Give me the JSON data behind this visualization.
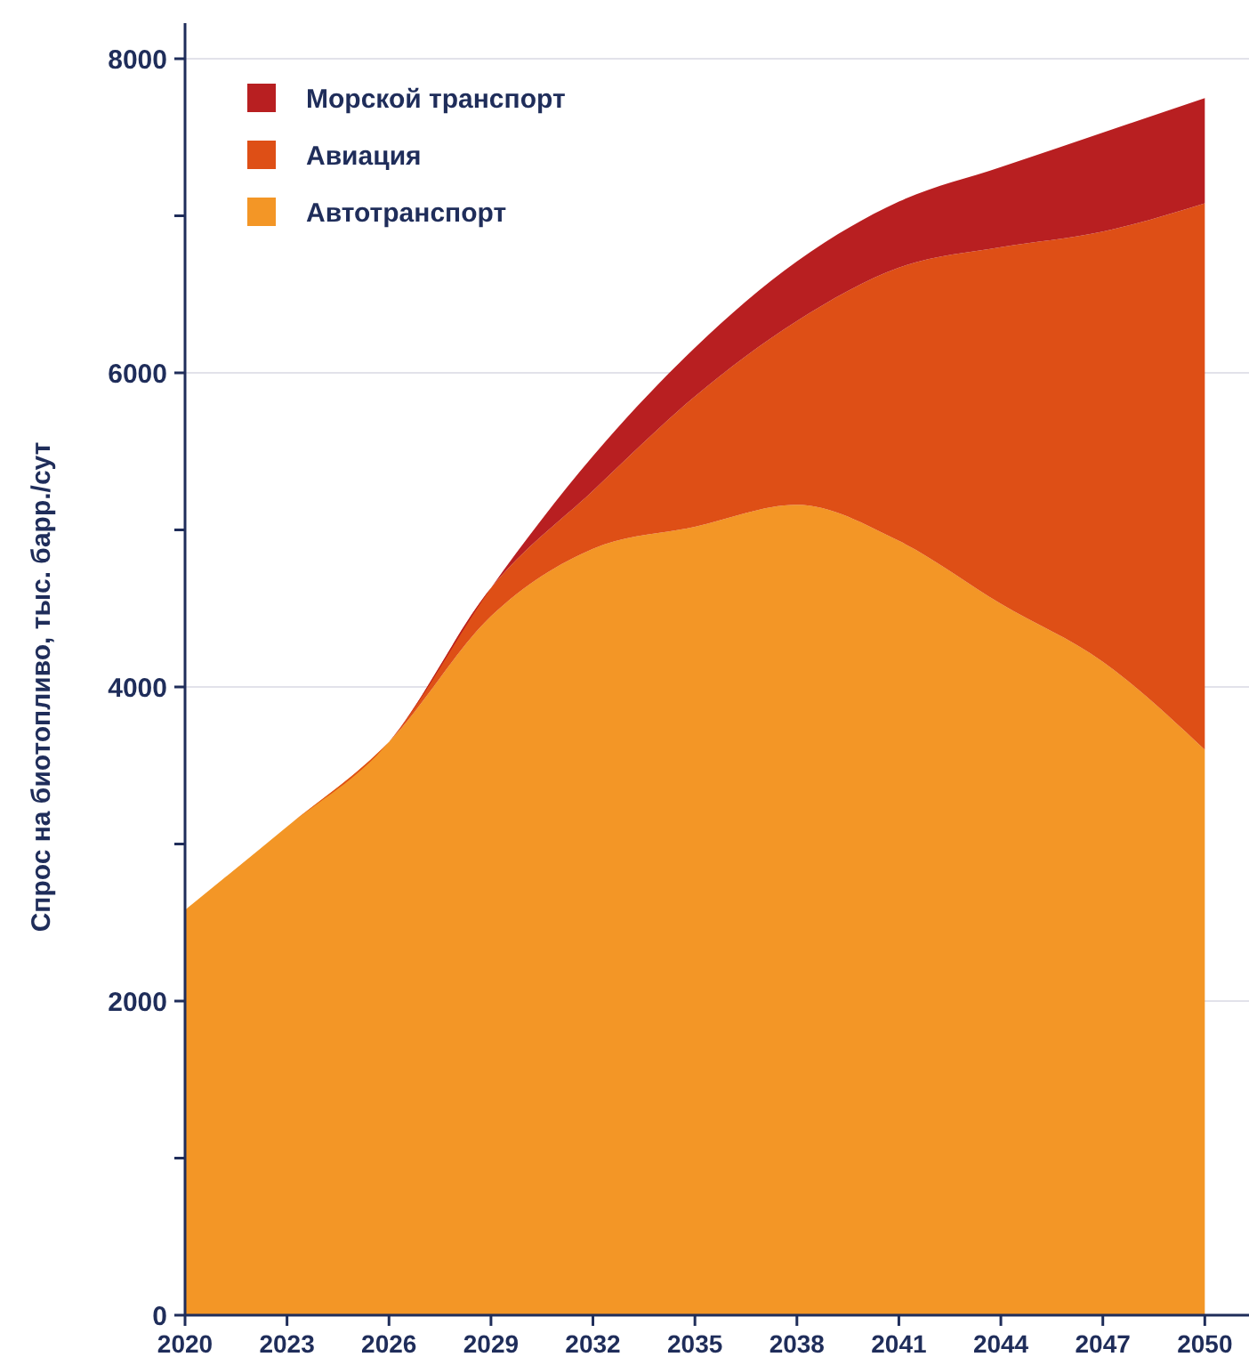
{
  "chart_data": {
    "type": "area",
    "stacked": true,
    "ylabel": "Спрос на биотопливо, тыс. барр./сут",
    "x": [
      2020,
      2023,
      2026,
      2029,
      2032,
      2035,
      2038,
      2041,
      2044,
      2047,
      2050
    ],
    "series": [
      {
        "name": "Автотранспорт",
        "color": "#f39626",
        "values": [
          2580,
          3110,
          3650,
          4450,
          4880,
          5020,
          5160,
          4930,
          4530,
          4160,
          3600
        ]
      },
      {
        "name": "Авиация",
        "color": "#de4f16",
        "values": [
          0,
          0,
          0,
          180,
          370,
          830,
          1170,
          1740,
          2270,
          2740,
          3480
        ]
      },
      {
        "name": "Морской транспорт",
        "color": "#b81f21",
        "values": [
          0,
          0,
          0,
          0,
          220,
          310,
          380,
          420,
          510,
          630,
          670
        ]
      }
    ],
    "xlim": [
      2020,
      2051.3
    ],
    "xticks": [
      2020,
      2023,
      2026,
      2029,
      2032,
      2035,
      2038,
      2041,
      2044,
      2047,
      2050
    ],
    "ylim": [
      0,
      8000
    ],
    "yticks": [
      0,
      {
        "value": 1000,
        "label": null
      },
      2000,
      {
        "value": 3000,
        "label": null
      },
      4000,
      {
        "value": 5000,
        "label": null
      },
      6000,
      {
        "value": 7000,
        "label": null
      },
      8000
    ],
    "grid": "y",
    "legend": "top left"
  }
}
